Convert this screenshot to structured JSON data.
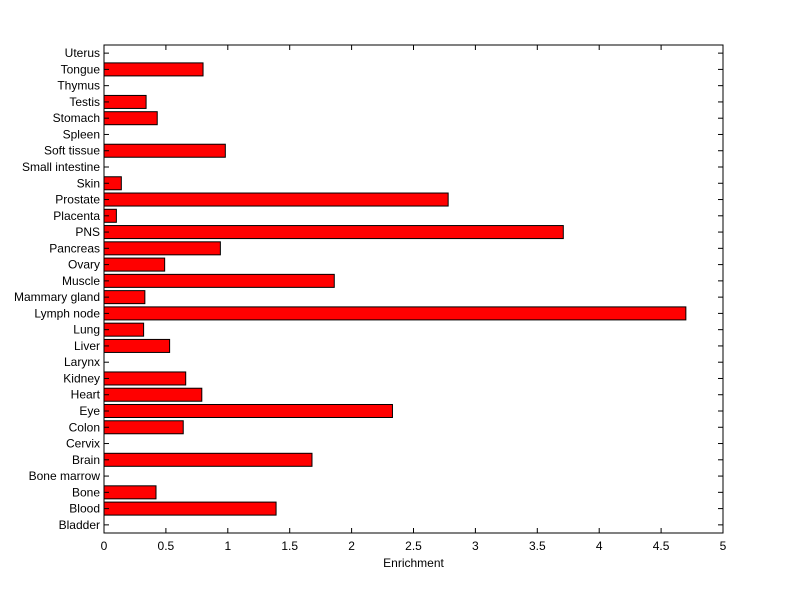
{
  "chart_data": {
    "type": "bar",
    "orientation": "horizontal",
    "categories": [
      "Uterus",
      "Tongue",
      "Thymus",
      "Testis",
      "Stomach",
      "Spleen",
      "Soft tissue",
      "Small intestine",
      "Skin",
      "Prostate",
      "Placenta",
      "PNS",
      "Pancreas",
      "Ovary",
      "Muscle",
      "Mammary gland",
      "Lymph node",
      "Lung",
      "Liver",
      "Larynx",
      "Kidney",
      "Heart",
      "Eye",
      "Colon",
      "Cervix",
      "Brain",
      "Bone marrow",
      "Bone",
      "Blood",
      "Bladder"
    ],
    "values": [
      0,
      0.8,
      0,
      0.34,
      0.43,
      0,
      0.98,
      0,
      0.14,
      2.78,
      0.1,
      3.71,
      0.94,
      0.49,
      1.86,
      0.33,
      4.7,
      0.32,
      0.53,
      0,
      0.66,
      0.79,
      2.33,
      0.64,
      0,
      1.68,
      0,
      0.42,
      1.39,
      0
    ],
    "xlabel": "Enrichment",
    "ylabel": "",
    "title": "",
    "xlim": [
      0,
      5
    ],
    "xticks": [
      0,
      0.5,
      1,
      1.5,
      2,
      2.5,
      3,
      3.5,
      4,
      4.5,
      5
    ],
    "xtick_labels": [
      "0",
      "0.5",
      "1",
      "1.5",
      "2",
      "2.5",
      "3",
      "3.5",
      "4",
      "4.5",
      "5"
    ],
    "bar_color": "#ff0000",
    "grid": false,
    "legend": "none"
  }
}
